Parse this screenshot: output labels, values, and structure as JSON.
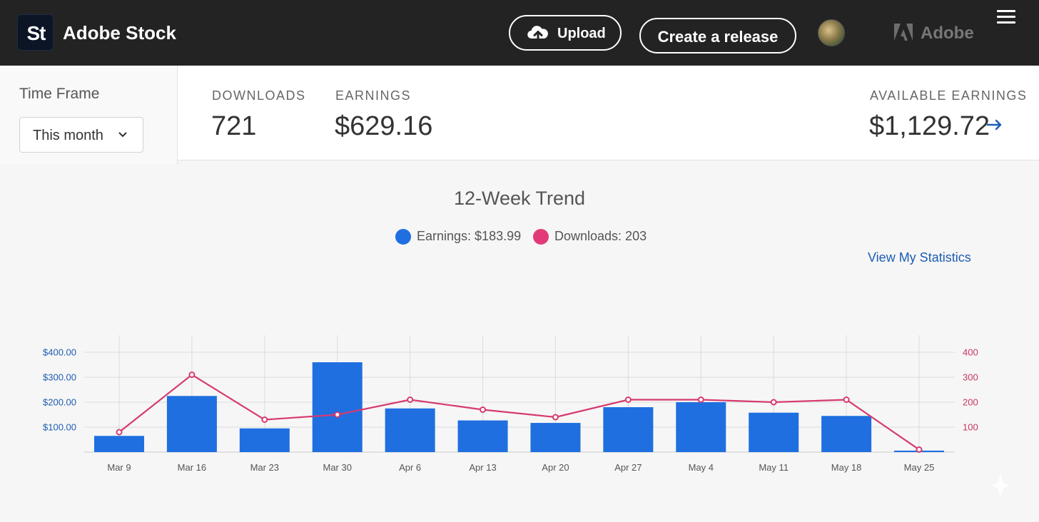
{
  "header": {
    "logo_text": "St",
    "brand": "Adobe Stock",
    "upload_label": "Upload",
    "create_release_label": "Create a release",
    "adobe_label": "Adobe"
  },
  "stats": {
    "time_frame_label": "Time Frame",
    "time_frame_value": "This month",
    "downloads_label": "DOWNLOADS",
    "downloads_value": "721",
    "earnings_label": "EARNINGS",
    "earnings_value": "$629.16",
    "available_label": "AVAILABLE EARNINGS",
    "available_value": "$1,129.72"
  },
  "chart_title": "12-Week Trend",
  "legend": {
    "earnings": "Earnings: $183.99",
    "downloads": "Downloads: 203"
  },
  "view_statistics": "View My Statistics",
  "colors": {
    "earnings": "#1f6fe0",
    "downloads": "#d63a6e",
    "earnings_axis": "#1d5db3",
    "downloads_axis": "#c8365f"
  },
  "chart_data": {
    "type": "bar",
    "title": "12-Week Trend",
    "categories": [
      "Mar 9",
      "Mar 16",
      "Mar 23",
      "Mar 30",
      "Apr 6",
      "Apr 13",
      "Apr 20",
      "Apr 27",
      "May 4",
      "May 11",
      "May 18",
      "May 25"
    ],
    "series": [
      {
        "name": "Earnings",
        "type": "bar",
        "axis": "left",
        "values": [
          65,
          225,
          95,
          360,
          175,
          127,
          117,
          180,
          200,
          158,
          145,
          6
        ]
      },
      {
        "name": "Downloads",
        "type": "line",
        "axis": "right",
        "values": [
          80,
          310,
          130,
          150,
          210,
          170,
          140,
          210,
          210,
          200,
          210,
          10
        ]
      }
    ],
    "left_axis": {
      "ticks": [
        100,
        200,
        300,
        400
      ],
      "tick_labels": [
        "$100.00",
        "$200.00",
        "$300.00",
        "$400.00"
      ],
      "range": [
        0,
        400
      ]
    },
    "right_axis": {
      "ticks": [
        100,
        200,
        300,
        400
      ],
      "tick_labels": [
        "100",
        "200",
        "300",
        "400"
      ],
      "range": [
        0,
        400
      ]
    },
    "grid": true,
    "legend_position": "top-center"
  }
}
